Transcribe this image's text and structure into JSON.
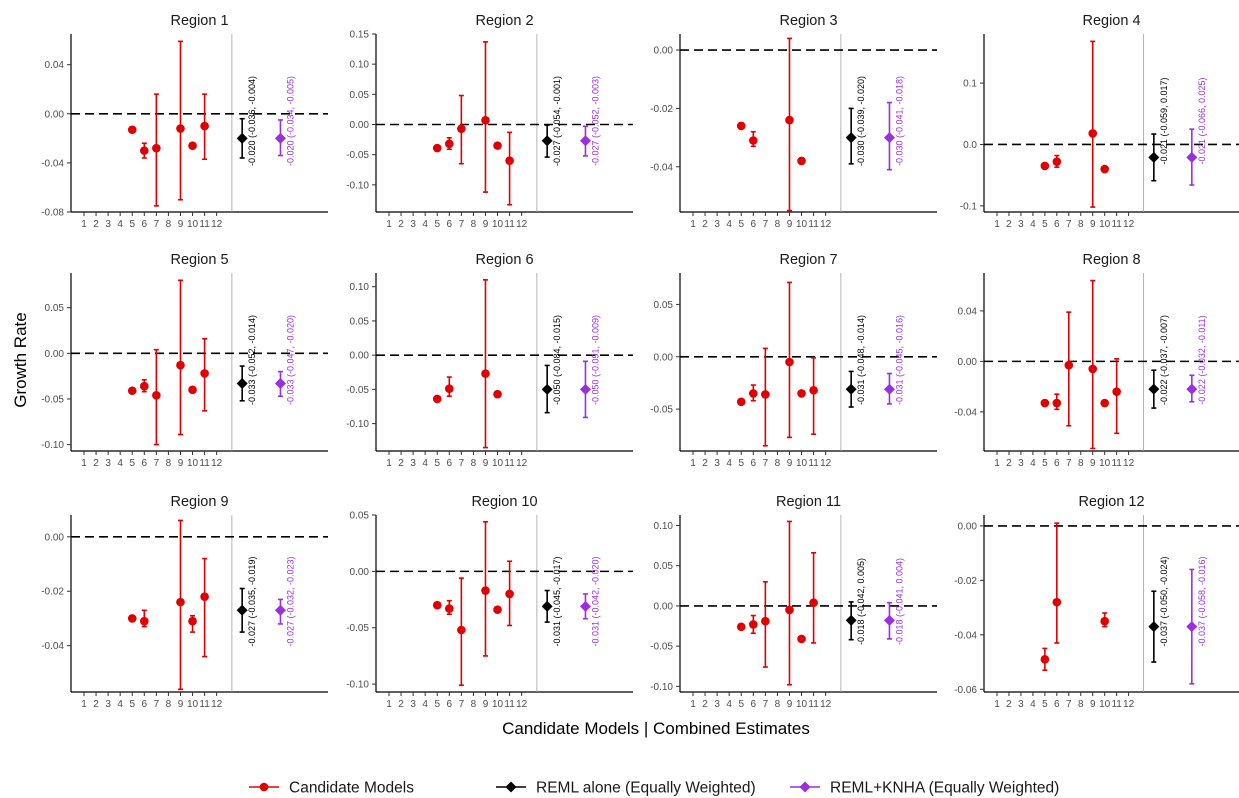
{
  "figure": {
    "ylabel": "Growth Rate",
    "xlabel": "Candidate Models | Combined Estimates",
    "legend": {
      "position": "bottom",
      "items": [
        {
          "label": "Candidate Models",
          "color": "#e00000",
          "marker": "circle"
        },
        {
          "label": "REML alone (Equally Weighted)",
          "color": "#000000",
          "marker": "diamond"
        },
        {
          "label": "REML+KNHA (Equally Weighted)",
          "color": "#9b2fe0",
          "marker": "diamond"
        }
      ]
    },
    "reference_line_y": 0
  },
  "chart_data": [
    {
      "type": "scatter",
      "title": "Region 1",
      "x_ticks": [
        "1",
        "2",
        "3",
        "4",
        "5",
        "6",
        "7",
        "8",
        "9",
        "10",
        "11",
        "12"
      ],
      "ylim": [
        -0.08,
        0.065
      ],
      "yticks": [
        0.04,
        0,
        -0.04,
        -0.08
      ],
      "ytick_labels": [
        "0.04",
        "0.00",
        "-0.04",
        "-0.08"
      ],
      "candidates": [
        {
          "x": 5,
          "y": -0.013
        },
        {
          "x": 6,
          "y": -0.03,
          "lo": -0.036,
          "hi": -0.024
        },
        {
          "x": 7,
          "y": -0.028,
          "lo": -0.075,
          "hi": 0.016
        },
        {
          "x": 9,
          "y": -0.012,
          "lo": -0.07,
          "hi": 0.059
        },
        {
          "x": 10,
          "y": -0.026
        },
        {
          "x": 11,
          "y": -0.01,
          "lo": -0.037,
          "hi": 0.016
        }
      ],
      "reml": {
        "est": -0.02,
        "lo": -0.036,
        "hi": -0.004,
        "label": "-0.020 (-0.036, -0.004)"
      },
      "knha": {
        "est": -0.02,
        "lo": -0.034,
        "hi": -0.005,
        "label": "-0.020 (-0.034, -0.005)"
      }
    },
    {
      "type": "scatter",
      "title": "Region 2",
      "x_ticks": [
        "1",
        "2",
        "3",
        "4",
        "5",
        "6",
        "7",
        "8",
        "9",
        "10",
        "11",
        "12"
      ],
      "ylim": [
        -0.145,
        0.15
      ],
      "yticks": [
        0.15,
        0.1,
        0.05,
        0,
        -0.05,
        -0.1
      ],
      "ytick_labels": [
        "0.15",
        "0.10",
        "0.05",
        "0.00",
        "-0.05",
        "-0.10"
      ],
      "candidates": [
        {
          "x": 5,
          "y": -0.039
        },
        {
          "x": 6,
          "y": -0.032,
          "lo": -0.041,
          "hi": -0.022
        },
        {
          "x": 7,
          "y": -0.007,
          "lo": -0.065,
          "hi": 0.048
        },
        {
          "x": 9,
          "y": 0.007,
          "lo": -0.112,
          "hi": 0.137
        },
        {
          "x": 10,
          "y": -0.035
        },
        {
          "x": 11,
          "y": -0.06,
          "lo": -0.133,
          "hi": -0.013
        }
      ],
      "reml": {
        "est": -0.027,
        "lo": -0.054,
        "hi": -0.001,
        "label": "-0.027 (-0.054, -0.001)"
      },
      "knha": {
        "est": -0.027,
        "lo": -0.052,
        "hi": -0.003,
        "label": "-0.027 (-0.052, -0.003)"
      }
    },
    {
      "type": "scatter",
      "title": "Region 3",
      "x_ticks": [
        "1",
        "2",
        "3",
        "4",
        "5",
        "6",
        "7",
        "8",
        "9",
        "10",
        "11",
        "12"
      ],
      "ylim": [
        -0.0555,
        0.0055
      ],
      "yticks": [
        0,
        -0.02,
        -0.04
      ],
      "ytick_labels": [
        "0.00",
        "-0.02",
        "-0.04"
      ],
      "candidates": [
        {
          "x": 5,
          "y": -0.026,
          "lo": -0.027,
          "hi": -0.025
        },
        {
          "x": 6,
          "y": -0.031,
          "lo": -0.033,
          "hi": -0.028
        },
        {
          "x": 9,
          "y": -0.024,
          "lo": -0.055,
          "hi": 0.004
        },
        {
          "x": 10,
          "y": -0.038,
          "lo": -0.039,
          "hi": -0.037
        }
      ],
      "reml": {
        "est": -0.03,
        "lo": -0.039,
        "hi": -0.02,
        "label": "-0.030 (-0.039, -0.020)"
      },
      "knha": {
        "est": -0.03,
        "lo": -0.041,
        "hi": -0.018,
        "label": "-0.030 (-0.041, -0.018)"
      }
    },
    {
      "type": "scatter",
      "title": "Region 4",
      "x_ticks": [
        "1",
        "2",
        "3",
        "4",
        "5",
        "6",
        "7",
        "8",
        "9",
        "10",
        "11",
        "12"
      ],
      "ylim": [
        -0.11,
        0.18
      ],
      "yticks": [
        0.1,
        0,
        -0.1
      ],
      "ytick_labels": [
        "0.1",
        "0.0",
        "-0.1"
      ],
      "candidates": [
        {
          "x": 5,
          "y": -0.035
        },
        {
          "x": 6,
          "y": -0.028,
          "lo": -0.037,
          "hi": -0.018
        },
        {
          "x": 9,
          "y": 0.018,
          "lo": -0.102,
          "hi": 0.168
        },
        {
          "x": 10,
          "y": -0.04
        }
      ],
      "reml": {
        "est": -0.021,
        "lo": -0.059,
        "hi": 0.017,
        "label": "-0.021 (-0.059, 0.017)"
      },
      "knha": {
        "est": -0.021,
        "lo": -0.066,
        "hi": 0.025,
        "label": "-0.021 (-0.066, 0.025)"
      }
    },
    {
      "type": "scatter",
      "title": "Region 5",
      "x_ticks": [
        "1",
        "2",
        "3",
        "4",
        "5",
        "6",
        "7",
        "8",
        "9",
        "10",
        "11",
        "12"
      ],
      "ylim": [
        -0.107,
        0.088
      ],
      "yticks": [
        0.05,
        0,
        -0.05,
        -0.1
      ],
      "ytick_labels": [
        "0.05",
        "0.00",
        "-0.05",
        "-0.10"
      ],
      "candidates": [
        {
          "x": 5,
          "y": -0.041
        },
        {
          "x": 6,
          "y": -0.036,
          "lo": -0.042,
          "hi": -0.029
        },
        {
          "x": 7,
          "y": -0.046,
          "lo": -0.1,
          "hi": 0.004
        },
        {
          "x": 9,
          "y": -0.013,
          "lo": -0.089,
          "hi": 0.08
        },
        {
          "x": 10,
          "y": -0.04
        },
        {
          "x": 11,
          "y": -0.022,
          "lo": -0.063,
          "hi": 0.016
        }
      ],
      "reml": {
        "est": -0.033,
        "lo": -0.052,
        "hi": -0.014,
        "label": "-0.033 (-0.052, -0.014)"
      },
      "knha": {
        "est": -0.033,
        "lo": -0.047,
        "hi": -0.02,
        "label": "-0.033 (-0.047, -0.020)"
      }
    },
    {
      "type": "scatter",
      "title": "Region 6",
      "x_ticks": [
        "1",
        "2",
        "3",
        "4",
        "5",
        "6",
        "7",
        "8",
        "9",
        "10",
        "11",
        "12"
      ],
      "ylim": [
        -0.14,
        0.12
      ],
      "yticks": [
        0.1,
        0.05,
        0,
        -0.05,
        -0.1
      ],
      "ytick_labels": [
        "0.10",
        "0.05",
        "0.00",
        "-0.05",
        "-0.10"
      ],
      "candidates": [
        {
          "x": 5,
          "y": -0.064
        },
        {
          "x": 6,
          "y": -0.049,
          "lo": -0.06,
          "hi": -0.032
        },
        {
          "x": 9,
          "y": -0.027,
          "lo": -0.135,
          "hi": 0.11
        },
        {
          "x": 10,
          "y": -0.057
        }
      ],
      "reml": {
        "est": -0.05,
        "lo": -0.084,
        "hi": -0.015,
        "label": "-0.050 (-0.084, -0.015)"
      },
      "knha": {
        "est": -0.05,
        "lo": -0.091,
        "hi": -0.009,
        "label": "-0.050 (-0.091, -0.009)"
      }
    },
    {
      "type": "scatter",
      "title": "Region 7",
      "x_ticks": [
        "1",
        "2",
        "3",
        "4",
        "5",
        "6",
        "7",
        "8",
        "9",
        "10",
        "11",
        "12"
      ],
      "ylim": [
        -0.09,
        0.08
      ],
      "yticks": [
        0.05,
        0,
        -0.05
      ],
      "ytick_labels": [
        "0.05",
        "0.00",
        "-0.05"
      ],
      "candidates": [
        {
          "x": 5,
          "y": -0.043
        },
        {
          "x": 6,
          "y": -0.035,
          "lo": -0.042,
          "hi": -0.027
        },
        {
          "x": 7,
          "y": -0.036,
          "lo": -0.085,
          "hi": 0.008
        },
        {
          "x": 9,
          "y": -0.005,
          "lo": -0.077,
          "hi": 0.071
        },
        {
          "x": 10,
          "y": -0.035
        },
        {
          "x": 11,
          "y": -0.032,
          "lo": -0.074,
          "hi": -0.001
        }
      ],
      "reml": {
        "est": -0.031,
        "lo": -0.048,
        "hi": -0.014,
        "label": "-0.031 (-0.048, -0.014)"
      },
      "knha": {
        "est": -0.031,
        "lo": -0.045,
        "hi": -0.016,
        "label": "-0.031 (-0.045, -0.016)"
      }
    },
    {
      "type": "scatter",
      "title": "Region 8",
      "x_ticks": [
        "1",
        "2",
        "3",
        "4",
        "5",
        "6",
        "7",
        "8",
        "9",
        "10",
        "11",
        "12"
      ],
      "ylim": [
        -0.071,
        0.07
      ],
      "yticks": [
        0.04,
        0,
        -0.04
      ],
      "ytick_labels": [
        "0.04",
        "0.00",
        "-0.04"
      ],
      "candidates": [
        {
          "x": 5,
          "y": -0.033
        },
        {
          "x": 6,
          "y": -0.033,
          "lo": -0.038,
          "hi": -0.026
        },
        {
          "x": 7,
          "y": -0.003,
          "lo": -0.051,
          "hi": 0.039
        },
        {
          "x": 9,
          "y": -0.006,
          "lo": -0.069,
          "hi": 0.064
        },
        {
          "x": 10,
          "y": -0.033
        },
        {
          "x": 11,
          "y": -0.024,
          "lo": -0.057,
          "hi": 0.002
        }
      ],
      "reml": {
        "est": -0.022,
        "lo": -0.037,
        "hi": -0.007,
        "label": "-0.022 (-0.037, -0.007)"
      },
      "knha": {
        "est": -0.022,
        "lo": -0.032,
        "hi": -0.011,
        "label": "-0.022 (-0.032, -0.011)"
      }
    },
    {
      "type": "scatter",
      "title": "Region 9",
      "x_ticks": [
        "1",
        "2",
        "3",
        "4",
        "5",
        "6",
        "7",
        "8",
        "9",
        "10",
        "11",
        "12"
      ],
      "ylim": [
        -0.057,
        0.008
      ],
      "yticks": [
        0,
        -0.02,
        -0.04
      ],
      "ytick_labels": [
        "0.00",
        "-0.02",
        "-0.04"
      ],
      "candidates": [
        {
          "x": 5,
          "y": -0.03
        },
        {
          "x": 6,
          "y": -0.031,
          "lo": -0.033,
          "hi": -0.027
        },
        {
          "x": 9,
          "y": -0.024,
          "lo": -0.056,
          "hi": 0.006
        },
        {
          "x": 10,
          "y": -0.031,
          "lo": -0.035,
          "hi": -0.029
        },
        {
          "x": 11,
          "y": -0.022,
          "lo": -0.044,
          "hi": -0.008
        }
      ],
      "reml": {
        "est": -0.027,
        "lo": -0.035,
        "hi": -0.019,
        "label": "-0.027 (-0.035, -0.019)"
      },
      "knha": {
        "est": -0.027,
        "lo": -0.032,
        "hi": -0.023,
        "label": "-0.027 (-0.032, -0.023)"
      }
    },
    {
      "type": "scatter",
      "title": "Region 10",
      "x_ticks": [
        "1",
        "2",
        "3",
        "4",
        "5",
        "6",
        "7",
        "8",
        "9",
        "10",
        "11",
        "12"
      ],
      "ylim": [
        -0.107,
        0.05
      ],
      "yticks": [
        0.05,
        0,
        -0.05,
        -0.1
      ],
      "ytick_labels": [
        "0.05",
        "0.00",
        "-0.05",
        "-0.10"
      ],
      "candidates": [
        {
          "x": 5,
          "y": -0.03
        },
        {
          "x": 6,
          "y": -0.033,
          "lo": -0.038,
          "hi": -0.026
        },
        {
          "x": 7,
          "y": -0.052,
          "lo": -0.101,
          "hi": -0.006
        },
        {
          "x": 9,
          "y": -0.017,
          "lo": -0.075,
          "hi": 0.044
        },
        {
          "x": 10,
          "y": -0.034
        },
        {
          "x": 11,
          "y": -0.02,
          "lo": -0.048,
          "hi": 0.009
        }
      ],
      "reml": {
        "est": -0.031,
        "lo": -0.045,
        "hi": -0.017,
        "label": "-0.031 (-0.045, -0.017)"
      },
      "knha": {
        "est": -0.031,
        "lo": -0.042,
        "hi": -0.02,
        "label": "-0.031 (-0.042, -0.020)"
      }
    },
    {
      "type": "scatter",
      "title": "Region 11",
      "x_ticks": [
        "1",
        "2",
        "3",
        "4",
        "5",
        "6",
        "7",
        "8",
        "9",
        "10",
        "11",
        "12"
      ],
      "ylim": [
        -0.107,
        0.113
      ],
      "yticks": [
        0.1,
        0.05,
        0,
        -0.05,
        -0.1
      ],
      "ytick_labels": [
        "0.10",
        "0.05",
        "0.00",
        "-0.05",
        "-0.10"
      ],
      "candidates": [
        {
          "x": 5,
          "y": -0.026
        },
        {
          "x": 6,
          "y": -0.023,
          "lo": -0.034,
          "hi": -0.012
        },
        {
          "x": 7,
          "y": -0.019,
          "lo": -0.076,
          "hi": 0.03
        },
        {
          "x": 9,
          "y": -0.005,
          "lo": -0.098,
          "hi": 0.105
        },
        {
          "x": 10,
          "y": -0.041
        },
        {
          "x": 11,
          "y": 0.004,
          "lo": -0.046,
          "hi": 0.066
        }
      ],
      "reml": {
        "est": -0.018,
        "lo": -0.042,
        "hi": 0.005,
        "label": "-0.018 (-0.042, 0.005)"
      },
      "knha": {
        "est": -0.018,
        "lo": -0.041,
        "hi": 0.004,
        "label": "-0.018 (-0.041, 0.004)"
      }
    },
    {
      "type": "scatter",
      "title": "Region 12",
      "x_ticks": [
        "1",
        "2",
        "3",
        "4",
        "5",
        "6",
        "7",
        "8",
        "9",
        "10",
        "11",
        "12"
      ],
      "ylim": [
        -0.061,
        0.004
      ],
      "yticks": [
        0,
        -0.02,
        -0.04,
        -0.06
      ],
      "ytick_labels": [
        "0.00",
        "-0.02",
        "-0.04",
        "-0.06"
      ],
      "candidates": [
        {
          "x": 5,
          "y": -0.049,
          "lo": -0.053,
          "hi": -0.045
        },
        {
          "x": 6,
          "y": -0.028,
          "lo": -0.043,
          "hi": 0.001
        },
        {
          "x": 10,
          "y": -0.035,
          "lo": -0.037,
          "hi": -0.032
        }
      ],
      "reml": {
        "est": -0.037,
        "lo": -0.05,
        "hi": -0.024,
        "label": "-0.037 (-0.050, -0.024)"
      },
      "knha": {
        "est": -0.037,
        "lo": -0.058,
        "hi": -0.016,
        "label": "-0.037 (-0.058, -0.016)"
      }
    }
  ]
}
